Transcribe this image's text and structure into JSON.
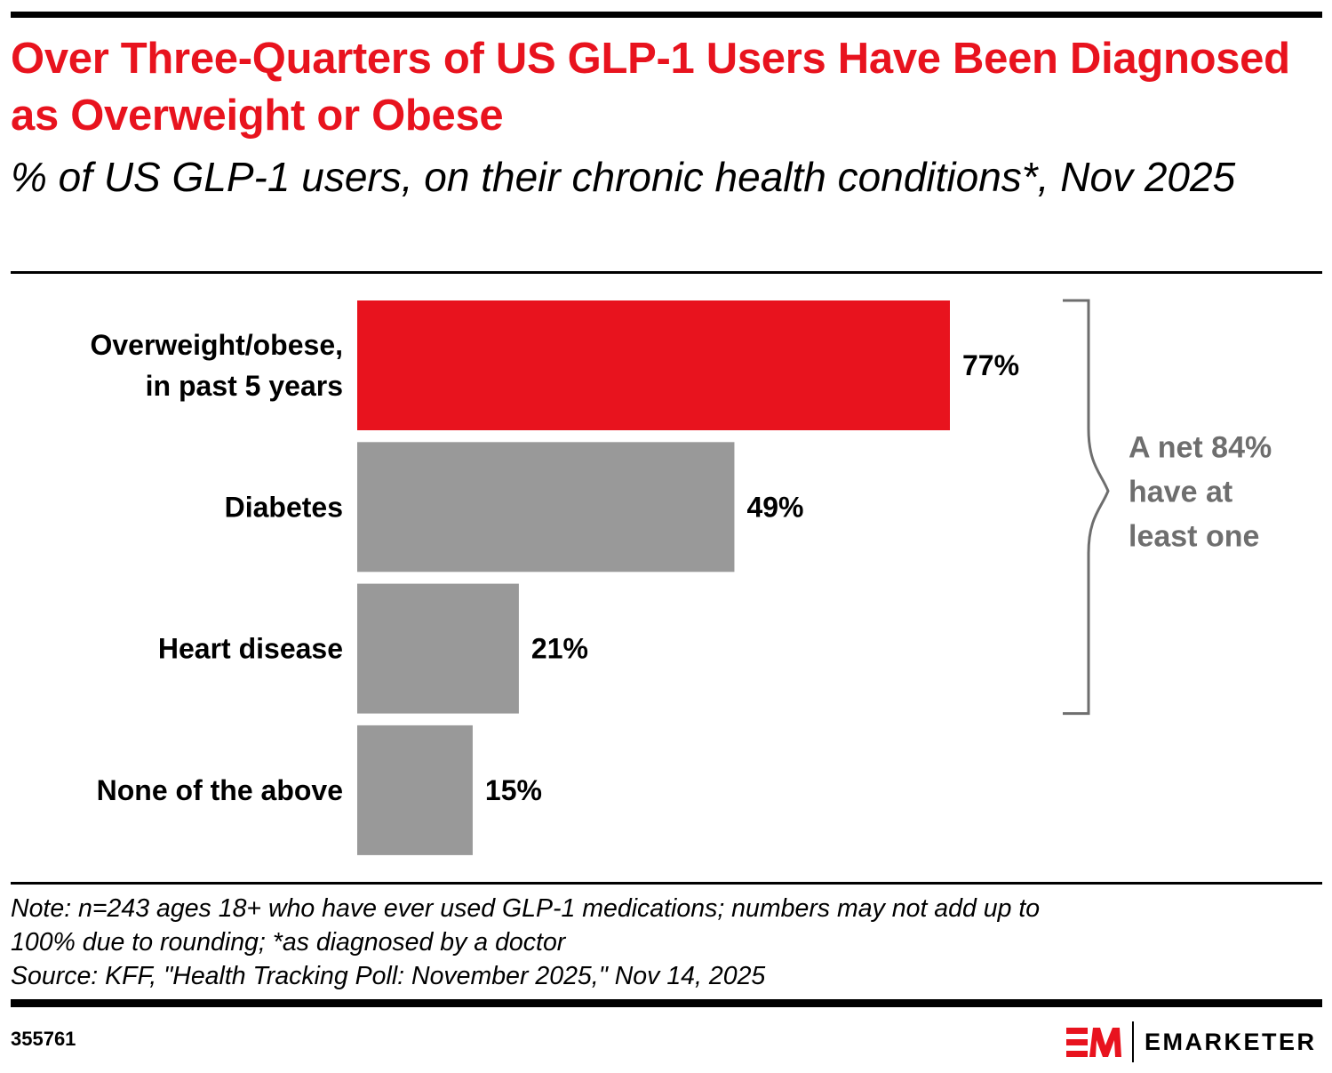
{
  "header": {
    "title": "Over Three-Quarters of US GLP-1 Users Have Been Diagnosed as Overweight or Obese",
    "subtitle": "% of US GLP-1 users, on their chronic health conditions*, Nov 2025"
  },
  "chart_data": {
    "type": "bar",
    "orientation": "horizontal",
    "title": "Over Three-Quarters of US GLP-1 Users Have Been Diagnosed as Overweight or Obese",
    "subtitle": "% of US GLP-1 users, on their chronic health conditions*, Nov 2025",
    "xlabel": "",
    "ylabel": "",
    "unit": "%",
    "xlim": [
      0,
      100
    ],
    "grid": false,
    "legend": "none",
    "categories": [
      [
        "Overweight/obese,",
        "in past 5 years"
      ],
      [
        "Diabetes"
      ],
      [
        "Heart disease"
      ],
      [
        "None of the above"
      ]
    ],
    "values": [
      77,
      49,
      21,
      15
    ],
    "data_labels": [
      "77%",
      "49%",
      "21%",
      "15%"
    ],
    "colors": [
      "#e8131e",
      "#999999",
      "#999999",
      "#999999"
    ],
    "annotation": {
      "type": "bracket",
      "spans_categories": [
        "Overweight/obese, in past 5 years",
        "Diabetes",
        "Heart disease"
      ],
      "lines": [
        "A net 84%",
        "have at",
        "least one"
      ],
      "value": 84,
      "color": "#6e6e6e"
    }
  },
  "footer": {
    "note_lines": [
      "Note: n=243 ages 18+ who have ever used GLP-1 medications; numbers may not add up to",
      "100% due to rounding; *as diagnosed by a doctor",
      "Source: KFF, \"Health Tracking Poll: November 2025,\" Nov 14, 2025"
    ],
    "chart_id": "355761",
    "brand": "EMARKETER",
    "brand_color": "#e8131e"
  }
}
